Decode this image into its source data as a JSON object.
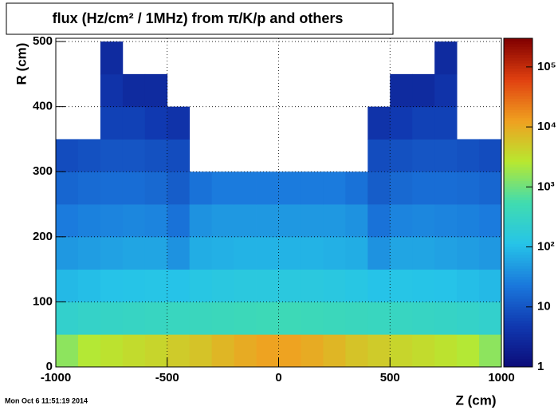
{
  "chart_data": {
    "type": "heatmap",
    "title": "flux (Hz/cm² / 1MHz) from π/K/p and others",
    "x_label": "Z (cm)",
    "y_label": "R (cm)",
    "timestamp": "Mon Oct  6 11:51:19 2014",
    "xlim": [
      -1000,
      1000
    ],
    "ylim": [
      0,
      505
    ],
    "zlim": [
      1,
      300000
    ],
    "zscale": "log",
    "xticks": [
      -1000,
      -500,
      0,
      500,
      1000
    ],
    "yticks": [
      0,
      100,
      200,
      300,
      400,
      500
    ],
    "zticks": [
      1,
      10,
      {
        "value": 100,
        "label": "10²"
      },
      {
        "value": 1000,
        "label": "10³"
      },
      {
        "value": 10000,
        "label": "10⁴"
      },
      {
        "value": 100000,
        "label": "10⁵"
      }
    ],
    "grid": true,
    "colormap": [
      "#0c0c78",
      "#1038b0",
      "#1a78dc",
      "#26c4e8",
      "#40dcb0",
      "#b8e830",
      "#f0a020",
      "#e04010",
      "#800000"
    ],
    "xbins": [
      -1000,
      -900,
      -800,
      -700,
      -600,
      -500,
      -400,
      -300,
      -200,
      -100,
      0,
      100,
      200,
      300,
      400,
      500,
      600,
      700,
      800,
      900,
      1000
    ],
    "ybins": [
      0,
      50,
      100,
      150,
      200,
      250,
      300,
      350,
      400,
      450,
      500
    ],
    "z": [
      [
        1500,
        2500,
        3000,
        3500,
        4000,
        5000,
        6000,
        8000,
        10000,
        12000,
        12000,
        10000,
        8000,
        6000,
        5000,
        4000,
        3500,
        3000,
        2500,
        1500
      ],
      [
        250,
        280,
        300,
        320,
        340,
        360,
        380,
        400,
        420,
        450,
        450,
        420,
        400,
        380,
        360,
        340,
        320,
        300,
        280,
        250
      ],
      [
        90,
        100,
        110,
        115,
        120,
        110,
        130,
        140,
        150,
        150,
        150,
        150,
        140,
        130,
        110,
        120,
        115,
        110,
        100,
        90
      ],
      [
        45,
        50,
        55,
        60,
        60,
        40,
        70,
        75,
        80,
        80,
        80,
        80,
        75,
        70,
        40,
        60,
        60,
        55,
        50,
        45
      ],
      [
        25,
        28,
        30,
        32,
        30,
        20,
        40,
        45,
        45,
        45,
        45,
        45,
        45,
        40,
        20,
        30,
        32,
        30,
        28,
        25
      ],
      [
        15,
        17,
        18,
        18,
        16,
        12,
        20,
        25,
        25,
        25,
        25,
        25,
        25,
        20,
        12,
        16,
        18,
        18,
        17,
        15
      ],
      [
        8,
        9,
        10,
        10,
        9,
        8,
        null,
        null,
        null,
        null,
        null,
        null,
        null,
        null,
        8,
        9,
        10,
        10,
        9,
        8
      ],
      [
        null,
        null,
        6,
        6,
        5,
        4,
        null,
        null,
        null,
        null,
        null,
        null,
        null,
        null,
        4,
        5,
        6,
        6,
        null,
        null
      ],
      [
        null,
        null,
        4,
        3,
        3,
        null,
        null,
        null,
        null,
        null,
        null,
        null,
        null,
        null,
        null,
        3,
        3,
        4,
        null,
        null
      ],
      [
        null,
        null,
        3,
        null,
        null,
        null,
        null,
        null,
        null,
        null,
        null,
        null,
        null,
        null,
        null,
        null,
        null,
        3,
        null,
        null
      ]
    ]
  }
}
